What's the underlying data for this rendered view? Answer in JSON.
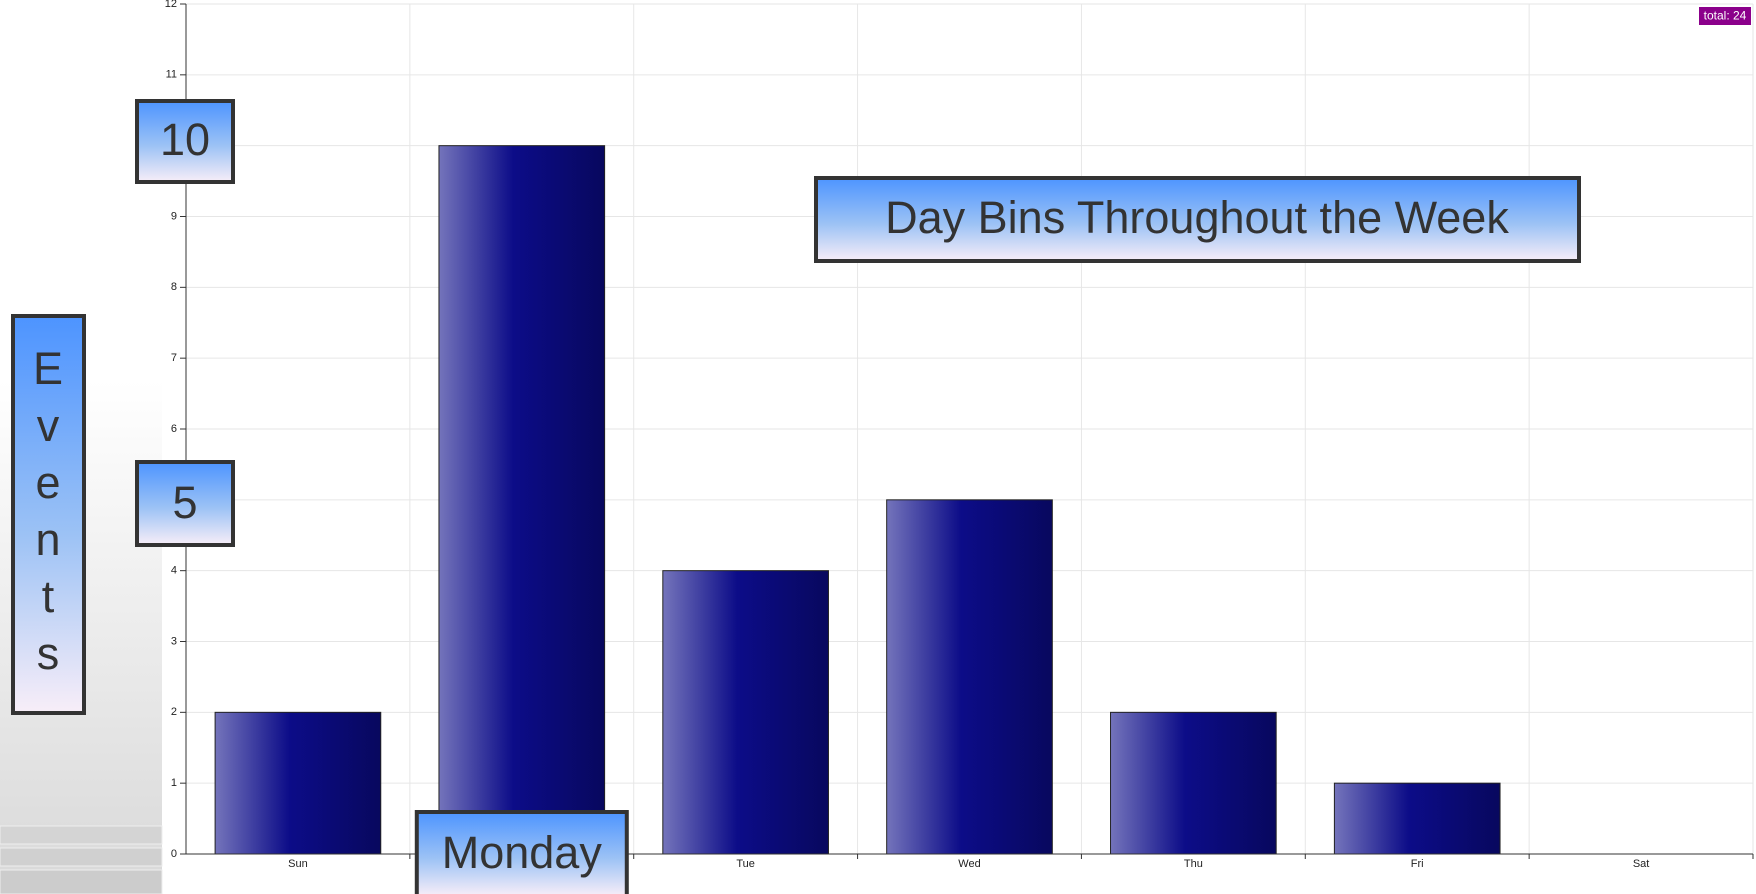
{
  "chart_data": {
    "type": "bar",
    "title": "Day Bins Throughout the Week",
    "y_label": "Events",
    "categories": [
      "Sun",
      "Mon",
      "Tue",
      "Wed",
      "Thu",
      "Fri",
      "Sat"
    ],
    "values": [
      2,
      10,
      4,
      5,
      2,
      1,
      0
    ],
    "color": "#0a0a80",
    "ylim": [
      0,
      12
    ],
    "yticks": [
      0,
      1,
      2,
      3,
      4,
      5,
      6,
      7,
      8,
      9,
      10,
      11,
      12
    ],
    "grid": true,
    "highlight_category": "Monday",
    "total_label": "total: 24"
  }
}
